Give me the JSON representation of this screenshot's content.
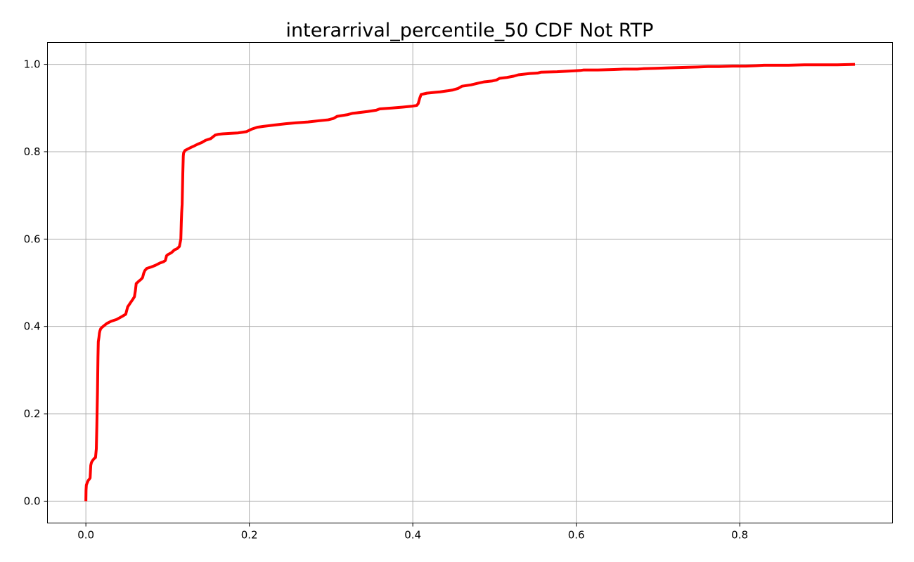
{
  "chart_data": {
    "type": "line",
    "title": "interarrival_percentile_50 CDF Not RTP",
    "xlabel": "",
    "ylabel": "",
    "xlim": [
      -0.047,
      0.987
    ],
    "ylim": [
      -0.05,
      1.05
    ],
    "xticks": [
      0.0,
      0.2,
      0.4,
      0.6,
      0.8
    ],
    "xtick_labels": [
      "0.0",
      "0.2",
      "0.4",
      "0.6",
      "0.8"
    ],
    "yticks": [
      0.0,
      0.2,
      0.4,
      0.6,
      0.8,
      1.0
    ],
    "ytick_labels": [
      "0.0",
      "0.2",
      "0.4",
      "0.6",
      "0.8",
      "1.0"
    ],
    "grid": true,
    "series": [
      {
        "color": "#ff0000",
        "x": [
          0.0,
          0.0002,
          0.0006,
          0.0014,
          0.0028,
          0.004,
          0.0052,
          0.0056,
          0.006,
          0.0066,
          0.0072,
          0.0086,
          0.0104,
          0.0118,
          0.0128,
          0.0134,
          0.0142,
          0.0148,
          0.0152,
          0.0156,
          0.016,
          0.0166,
          0.0172,
          0.0182,
          0.0198,
          0.0224,
          0.0258,
          0.031,
          0.0376,
          0.0444,
          0.0488,
          0.0502,
          0.0512,
          0.0548,
          0.0574,
          0.0594,
          0.0606,
          0.0616,
          0.0638,
          0.0676,
          0.0694,
          0.0708,
          0.0722,
          0.0746,
          0.0798,
          0.0852,
          0.0904,
          0.0948,
          0.0972,
          0.0988,
          0.1008,
          0.1048,
          0.1082,
          0.1116,
          0.1144,
          0.1162,
          0.1168,
          0.1172,
          0.1178,
          0.1186,
          0.1192,
          0.1196,
          0.1204,
          0.1214,
          0.1234,
          0.1266,
          0.1312,
          0.1366,
          0.1418,
          0.1464,
          0.1528,
          0.1582,
          0.1624,
          0.1676,
          0.176,
          0.186,
          0.1966,
          0.2034,
          0.2098,
          0.2172,
          0.2304,
          0.2446,
          0.2566,
          0.2718,
          0.2858,
          0.2964,
          0.3028,
          0.3074,
          0.3206,
          0.3266,
          0.3316,
          0.3446,
          0.3552,
          0.3596,
          0.3746,
          0.3876,
          0.3984,
          0.4048,
          0.4066,
          0.4084,
          0.4102,
          0.4172,
          0.4276,
          0.4336,
          0.4482,
          0.4556,
          0.4602,
          0.4712,
          0.4802,
          0.4876,
          0.4974,
          0.5022,
          0.5062,
          0.5152,
          0.5236,
          0.5292,
          0.5434,
          0.5526,
          0.5566,
          0.5764,
          0.5968,
          0.6048,
          0.6086,
          0.6266,
          0.6462,
          0.6582,
          0.6746,
          0.6816,
          0.6976,
          0.7126,
          0.7296,
          0.7486,
          0.7612,
          0.7746,
          0.7912,
          0.8076,
          0.8202,
          0.8296,
          0.8396,
          0.8596,
          0.8796,
          0.8996,
          0.9196,
          0.941
        ],
        "y": [
          0.0,
          0.025,
          0.037,
          0.041,
          0.047,
          0.05,
          0.053,
          0.068,
          0.082,
          0.087,
          0.09,
          0.094,
          0.098,
          0.1,
          0.12,
          0.17,
          0.25,
          0.33,
          0.365,
          0.37,
          0.375,
          0.385,
          0.39,
          0.395,
          0.398,
          0.402,
          0.407,
          0.412,
          0.416,
          0.423,
          0.428,
          0.438,
          0.445,
          0.455,
          0.462,
          0.468,
          0.482,
          0.498,
          0.502,
          0.508,
          0.512,
          0.522,
          0.528,
          0.533,
          0.536,
          0.54,
          0.545,
          0.548,
          0.551,
          0.562,
          0.565,
          0.569,
          0.575,
          0.578,
          0.583,
          0.6,
          0.64,
          0.66,
          0.68,
          0.75,
          0.79,
          0.797,
          0.8,
          0.803,
          0.805,
          0.808,
          0.812,
          0.817,
          0.821,
          0.826,
          0.83,
          0.838,
          0.84,
          0.841,
          0.842,
          0.843,
          0.846,
          0.852,
          0.856,
          0.858,
          0.861,
          0.864,
          0.866,
          0.868,
          0.871,
          0.873,
          0.876,
          0.881,
          0.885,
          0.888,
          0.889,
          0.892,
          0.895,
          0.898,
          0.9,
          0.902,
          0.904,
          0.906,
          0.91,
          0.922,
          0.931,
          0.934,
          0.936,
          0.937,
          0.941,
          0.945,
          0.95,
          0.953,
          0.957,
          0.96,
          0.962,
          0.964,
          0.968,
          0.97,
          0.973,
          0.976,
          0.979,
          0.98,
          0.982,
          0.983,
          0.985,
          0.986,
          0.987,
          0.987,
          0.988,
          0.989,
          0.989,
          0.99,
          0.991,
          0.992,
          0.993,
          0.994,
          0.995,
          0.995,
          0.996,
          0.996,
          0.997,
          0.998,
          0.998,
          0.998,
          0.999,
          0.999,
          0.999,
          1.0
        ]
      }
    ]
  }
}
